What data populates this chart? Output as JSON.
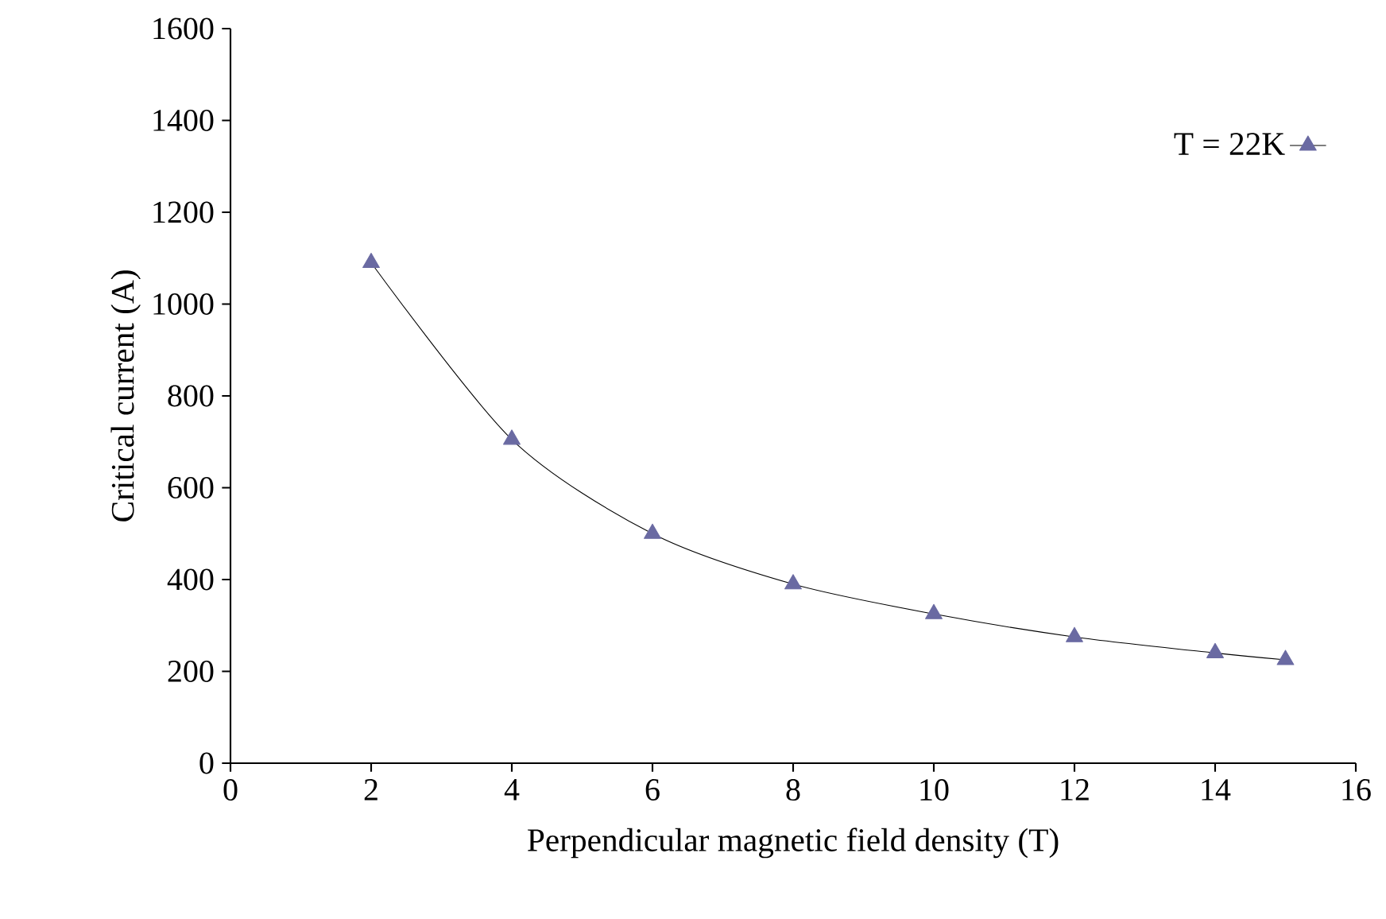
{
  "chart_data": {
    "type": "line",
    "xlabel": "Perpendicular magnetic field density (T)",
    "ylabel": "Critical current (A)",
    "x": [
      2,
      4,
      6,
      8,
      10,
      12,
      14,
      15
    ],
    "series": [
      {
        "name": "T = 22K",
        "color": "#6a6aa2",
        "values": [
          1090,
          705,
          500,
          390,
          325,
          275,
          240,
          225
        ]
      }
    ],
    "xlim": [
      0,
      16
    ],
    "xticks": [
      0,
      2,
      4,
      6,
      8,
      10,
      12,
      14,
      16
    ],
    "ylim": [
      0,
      1600
    ],
    "yticks": [
      0,
      200,
      400,
      600,
      800,
      1000,
      1200,
      1400,
      1600
    ],
    "marker": "triangle",
    "line_style": "solid",
    "legend": "top right",
    "grid": false
  }
}
